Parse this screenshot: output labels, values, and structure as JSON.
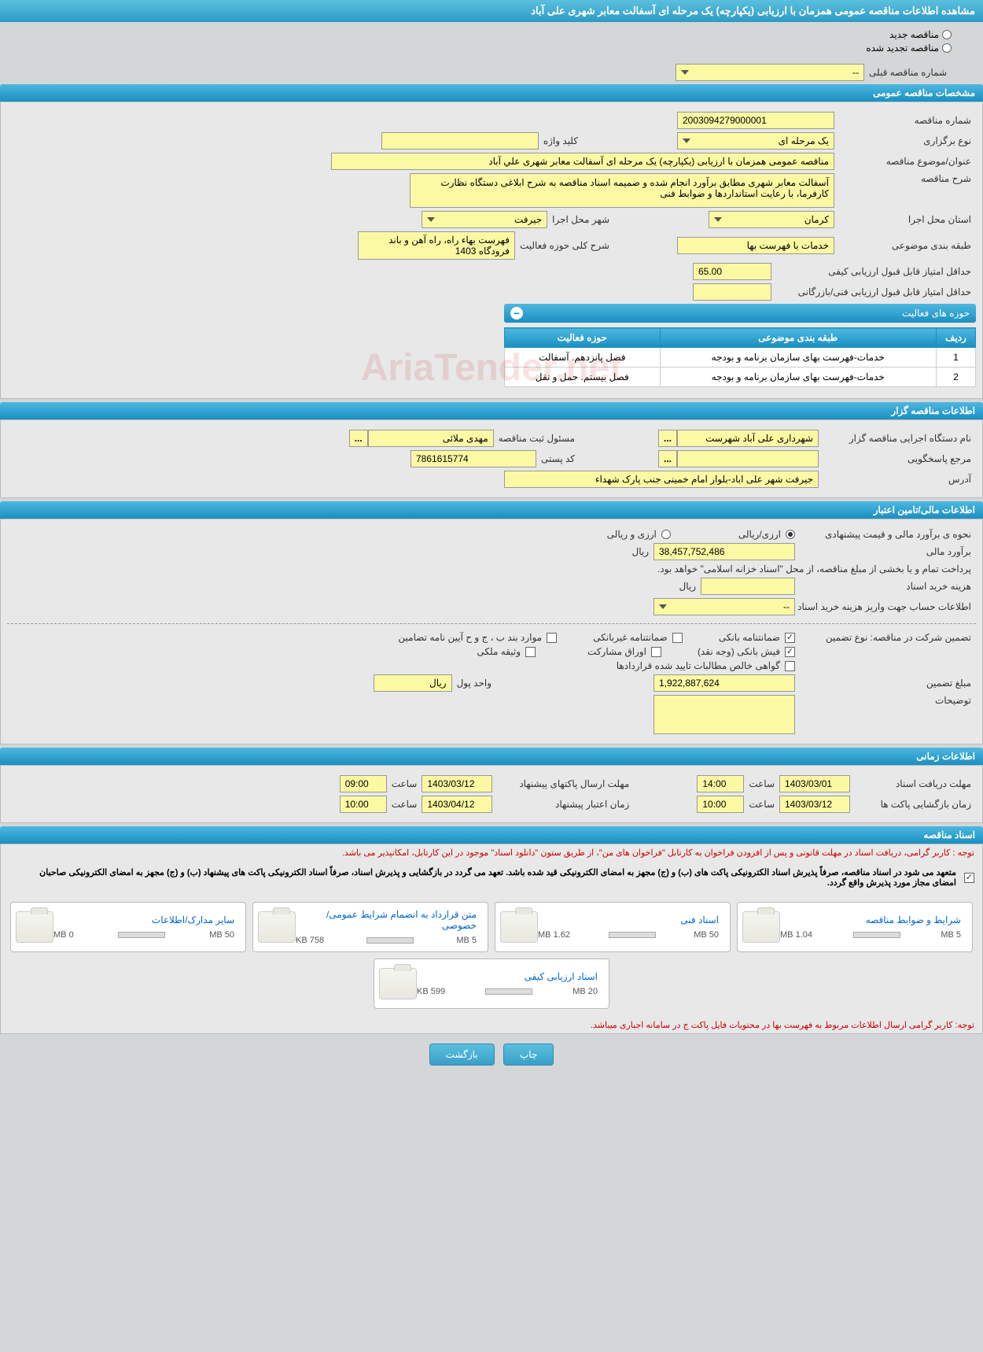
{
  "page_title": "مشاهده اطلاعات مناقصه عمومی همزمان با ارزیابی (یکپارچه) یک مرحله ای آسفالت معابر شهری علی آباد",
  "top_radios": {
    "new": "مناقصه جدید",
    "renewed": "مناقصه تجدید شده"
  },
  "prev_tender_label": "شماره مناقصه قبلی",
  "prev_tender_value": "--",
  "sections": {
    "general": {
      "title": "مشخصات مناقصه عمومی",
      "tender_no_label": "شماره مناقصه",
      "tender_no": "2003094279000001",
      "type_label": "نوع برگزاری",
      "type": "یک مرحله ای",
      "keyword_label": "کلید واژه",
      "keyword": "",
      "subject_label": "عنوان/موضوع مناقصه",
      "subject": "مناقصه عمومی همزمان با ارزیابی (یکپارچه) یک مرحله ای آسفالت معابر شهری علي آباد",
      "desc_label": "شرح مناقصه",
      "desc": "آسفالت معابر شهری مطابق برآورد انجام شده و ضمیمه اسناد مناقصه به شرح ابلاغی دستگاه نظارت کارفرما، با رعایت استانداردها و ضوابط فنی",
      "province_label": "استان محل اجرا",
      "province": "کرمان",
      "city_label": "شهر محل اجرا",
      "city": "جیرفت",
      "category_label": "طبقه بندی موضوعی",
      "category": "خدمات با فهرست بها",
      "scope_label": "شرح کلی حوزه فعالیت",
      "scope": "فهرست بهاء راه، راه آهن و باند فرودگاه 1403",
      "min_quality_label": "حداقل امتیاز قابل قبول ارزیابی کیفی",
      "min_quality": "65.00",
      "min_tech_label": "حداقل امتیاز قابل قبول ارزیابی فنی/بازرگانی",
      "min_tech": "",
      "activities_title": "حوزه های فعالیت",
      "table_headers": {
        "row": "ردیف",
        "category": "طبقه بندی موضوعی",
        "activity": "حوزه فعالیت"
      },
      "table_rows": [
        {
          "n": "1",
          "cat": "خدمات-فهرست بهای سازمان برنامه و بودجه",
          "act": "فصل پانزدهم. آسفالت"
        },
        {
          "n": "2",
          "cat": "خدمات-فهرست بهای سازمان برنامه و بودجه",
          "act": "فصل بیستم. حمل و نقل"
        }
      ]
    },
    "organizer": {
      "title": "اطلاعات مناقصه گزار",
      "org_label": "نام دستگاه اجرایی مناقصه گزار",
      "org": "شهرداری علی آباد شهرست",
      "registrar_label": "مسئول ثبت مناقصه",
      "registrar": "مهدی ملائی",
      "ref_label": "مرجع پاسخگویی",
      "ref": "",
      "postcode_label": "کد پستی",
      "postcode": "7861615774",
      "address_label": "آدرس",
      "address": "جیرفت شهر علی اباد-بلوار امام خمینی جنب پارک شهداء"
    },
    "financial": {
      "title": "اطلاعات مالی/تامین اعتبار",
      "estimate_type_label": "نحوه ی برآورد مالی و قیمت پیشنهادی",
      "opt_rial": "ارزی/ریالی",
      "opt_currency": "ارزی و ریالی",
      "estimate_label": "برآورد مالی",
      "estimate": "38,457,752,486",
      "unit_rial": "ریال",
      "payment_note": "پرداخت تمام و یا بخشی از مبلغ مناقصه، از محل \"اسناد خزانه اسلامی\" خواهد بود.",
      "doc_cost_label": "هزینه خرید اسناد",
      "doc_cost": "",
      "account_label": "اطلاعات حساب جهت واریز هزینه خرید اسناد",
      "account": "--",
      "guarantee_label": "تضمین شرکت در مناقصه:   نوع تضمین",
      "g1": "ضمانتنامه بانکی",
      "g2": "ضمانتنامه غیربانکی",
      "g3": "موارد بند ب ، ج و ح آیین نامه تضامین",
      "g4": "فیش بانکی (وجه نقد)",
      "g5": "اوراق مشارکت",
      "g6": "وثیقه ملکی",
      "g7": "گواهی خالص مطالبات تایید شده قراردادها",
      "gamount_label": "مبلغ تضمین",
      "gamount": "1,922,887,624",
      "money_unit_label": "واحد پول",
      "money_unit": "ریال",
      "notes_label": "توضیحات",
      "notes": ""
    },
    "timing": {
      "title": "اطلاعات زمانی",
      "doc_deadline_label": "مهلت دریافت اسناد",
      "doc_deadline_date": "1403/03/01",
      "doc_deadline_time": "14:00",
      "envelope_deadline_label": "مهلت ارسال پاکتهای پیشنهاد",
      "envelope_deadline_date": "1403/03/12",
      "envelope_deadline_time": "09:00",
      "open_label": "زمان بازگشایی پاکت ها",
      "open_date": "1403/03/12",
      "open_time": "10:00",
      "validity_label": "زمان اعتبار پیشنهاد",
      "validity_date": "1403/04/12",
      "validity_time": "10:00",
      "time_label": "ساعت"
    },
    "docs": {
      "title": "اسناد مناقصه",
      "note1": "توجه : کاربر گرامی، دریافت اسناد در مهلت قانونی و پس از افزودن فراخوان به کارتابل \"فراخوان های من\"، از طریق ستون \"دانلود اسناد\" موجود در این کارتابل، امکانپذیر می باشد.",
      "note2": "متعهد می شود در اسناد مناقصه، صرفاً پذیرش اسناد الکترونیکی پاکت های (ب) و (ج) مجهز به امضای الکترونیکی قید شده باشد. تعهد می گردد در بازگشایی و پذیرش اسناد، صرفاً اسناد الکترونیکی پاکت های پیشنهاد (ب) و (ج) مجهز به امضای الکترونیکی صاحبان امضای مجاز مورد پذیرش واقع گردد.",
      "files": [
        {
          "name": "شرایط و ضوابط مناقصه",
          "max": "5 MB",
          "size": "1.04 MB",
          "pct": 21
        },
        {
          "name": "اسناد فنی",
          "max": "50 MB",
          "size": "1.62 MB",
          "pct": 4
        },
        {
          "name": "متن قرارداد به انضمام شرایط عمومی/خصوصی",
          "max": "5 MB",
          "size": "758 KB",
          "pct": 15
        },
        {
          "name": "سایر مدارک/اطلاعات",
          "max": "50 MB",
          "size": "0 MB",
          "pct": 0
        },
        {
          "name": "اسناد ارزیابی کیفی",
          "max": "20 MB",
          "size": "599 KB",
          "pct": 3
        }
      ],
      "bottom_note": "توجه: کاربر گرامی ارسال اطلاعات مربوط به فهرست بها در محتویات فایل پاکت ج در سامانه اجباری میباشد."
    }
  },
  "buttons": {
    "print": "چاپ",
    "back": "بازگشت"
  },
  "watermark": "AriaTender.net"
}
